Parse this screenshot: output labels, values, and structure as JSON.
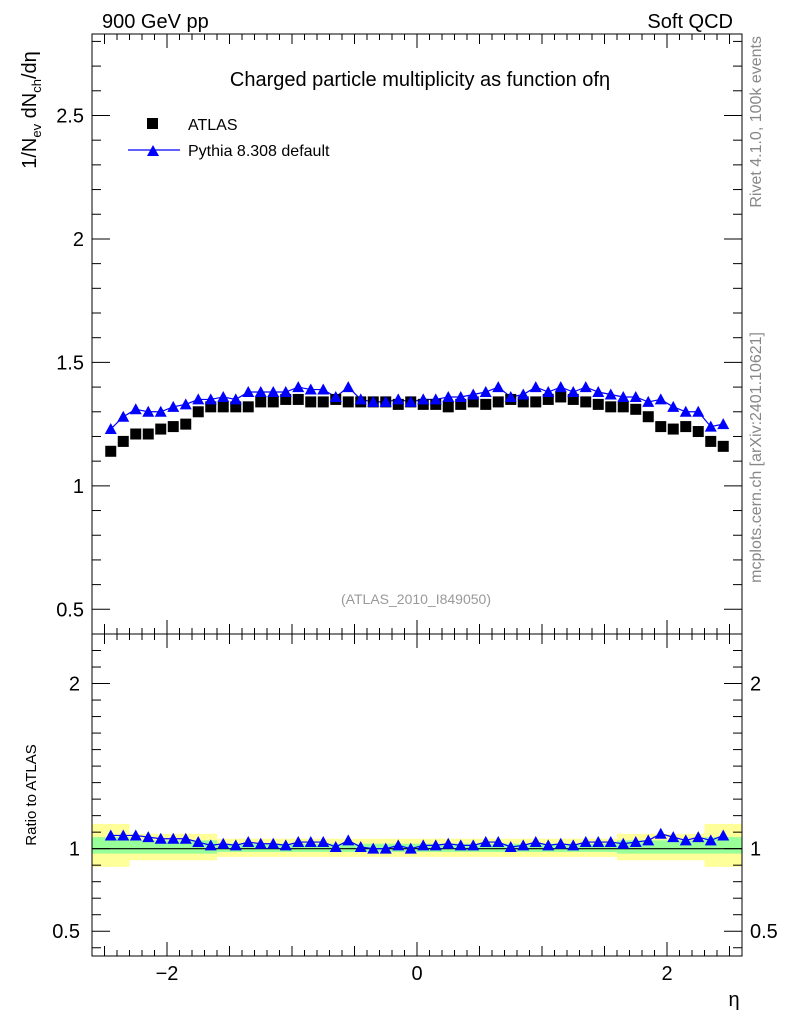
{
  "header": {
    "left": "900 GeV pp",
    "right": "Soft QCD"
  },
  "side_labels": {
    "rivet": "Rivet 4.1.0,  100k events",
    "source": "mcplots.cern.ch [arXiv:2401.10621]"
  },
  "colors": {
    "data": "#000000",
    "mc": "#0000ff",
    "band_outer": "#ffff99",
    "band_inner": "#99ff99"
  },
  "chart_data": [
    {
      "type": "scatter",
      "title": "Charged particle multiplicity as function ofη",
      "watermark": "(ATLAS_2010_I849050)",
      "xlabel": "η",
      "ylabel_parts": [
        "1/N",
        "ev",
        " dN",
        "ch",
        "/dη"
      ],
      "xlim": [
        -2.6,
        2.6
      ],
      "ylim": [
        0.4,
        2.83
      ],
      "yticks": [
        0.5,
        1,
        1.5,
        2,
        2.5
      ],
      "ytick_labels": [
        "0.5",
        "1",
        "1.5",
        "2",
        "2.5"
      ],
      "legend": {
        "position": "top-left",
        "entries": [
          "ATLAS",
          "Pythia 8.308 default"
        ]
      },
      "x": [
        -2.45,
        -2.35,
        -2.25,
        -2.15,
        -2.05,
        -1.95,
        -1.85,
        -1.75,
        -1.65,
        -1.55,
        -1.45,
        -1.35,
        -1.25,
        -1.15,
        -1.05,
        -0.95,
        -0.85,
        -0.75,
        -0.65,
        -0.55,
        -0.45,
        -0.35,
        -0.25,
        -0.15,
        -0.05,
        0.05,
        0.15,
        0.25,
        0.35,
        0.45,
        0.55,
        0.65,
        0.75,
        0.85,
        0.95,
        1.05,
        1.15,
        1.25,
        1.35,
        1.45,
        1.55,
        1.65,
        1.75,
        1.85,
        1.95,
        2.05,
        2.15,
        2.25,
        2.35,
        2.45
      ],
      "series": [
        {
          "name": "ATLAS",
          "marker": "square",
          "values": [
            1.14,
            1.18,
            1.21,
            1.21,
            1.23,
            1.24,
            1.25,
            1.3,
            1.32,
            1.32,
            1.32,
            1.32,
            1.34,
            1.34,
            1.35,
            1.35,
            1.34,
            1.34,
            1.35,
            1.34,
            1.34,
            1.34,
            1.34,
            1.33,
            1.34,
            1.33,
            1.33,
            1.32,
            1.33,
            1.34,
            1.33,
            1.34,
            1.35,
            1.34,
            1.34,
            1.35,
            1.36,
            1.35,
            1.34,
            1.33,
            1.32,
            1.32,
            1.31,
            1.28,
            1.24,
            1.23,
            1.24,
            1.22,
            1.18,
            1.16
          ]
        },
        {
          "name": "Pythia 8.308 default",
          "marker": "triangle",
          "values": [
            1.23,
            1.28,
            1.31,
            1.3,
            1.3,
            1.32,
            1.33,
            1.35,
            1.35,
            1.36,
            1.35,
            1.38,
            1.38,
            1.38,
            1.38,
            1.4,
            1.39,
            1.39,
            1.36,
            1.4,
            1.35,
            1.34,
            1.34,
            1.35,
            1.34,
            1.35,
            1.35,
            1.36,
            1.36,
            1.37,
            1.38,
            1.4,
            1.36,
            1.37,
            1.4,
            1.38,
            1.4,
            1.38,
            1.4,
            1.38,
            1.37,
            1.36,
            1.36,
            1.34,
            1.35,
            1.32,
            1.3,
            1.3,
            1.24,
            1.25
          ]
        }
      ]
    },
    {
      "type": "scatter",
      "ylabel": "Ratio to ATLAS",
      "xlabel": "η",
      "xlim": [
        -2.6,
        2.6
      ],
      "ylim": [
        0.35,
        2.3
      ],
      "yticks": [
        0.5,
        1,
        2
      ],
      "ytick_labels": [
        "0.5",
        "1",
        "2"
      ],
      "xticks": [
        -2,
        0,
        2
      ],
      "xtick_labels": [
        "−2",
        "0",
        "2"
      ],
      "reference_line": 1,
      "band_segments": [
        {
          "x": [
            -2.6,
            -2.3
          ],
          "inner": [
            0.97,
            1.07
          ],
          "outer": [
            0.89,
            1.15
          ]
        },
        {
          "x": [
            -2.3,
            -1.6
          ],
          "inner": [
            0.97,
            1.05
          ],
          "outer": [
            0.93,
            1.09
          ]
        },
        {
          "x": [
            -1.6,
            1.6
          ],
          "inner": [
            0.98,
            1.03
          ],
          "outer": [
            0.95,
            1.06
          ]
        },
        {
          "x": [
            1.6,
            2.3
          ],
          "inner": [
            0.97,
            1.05
          ],
          "outer": [
            0.93,
            1.09
          ]
        },
        {
          "x": [
            2.3,
            2.6
          ],
          "inner": [
            0.97,
            1.07
          ],
          "outer": [
            0.89,
            1.15
          ]
        }
      ],
      "series": [
        {
          "name": "Pythia 8.308 default / ATLAS",
          "marker": "triangle",
          "values": [
            1.08,
            1.08,
            1.08,
            1.07,
            1.06,
            1.06,
            1.06,
            1.04,
            1.02,
            1.03,
            1.02,
            1.04,
            1.03,
            1.03,
            1.02,
            1.04,
            1.04,
            1.04,
            1.01,
            1.05,
            1.01,
            1.0,
            1.0,
            1.02,
            1.0,
            1.02,
            1.02,
            1.03,
            1.02,
            1.02,
            1.04,
            1.04,
            1.01,
            1.02,
            1.04,
            1.02,
            1.03,
            1.02,
            1.04,
            1.04,
            1.04,
            1.03,
            1.04,
            1.05,
            1.09,
            1.07,
            1.05,
            1.07,
            1.05,
            1.08
          ]
        }
      ]
    }
  ]
}
